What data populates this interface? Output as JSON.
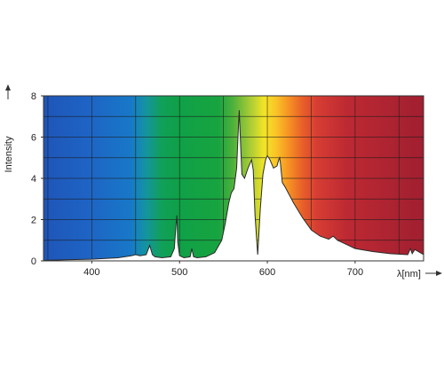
{
  "chart_data": {
    "type": "area",
    "title": "",
    "xlabel": "λ[nm]",
    "ylabel": "Intensity",
    "xlim": [
      345,
      778
    ],
    "ylim": [
      0,
      8
    ],
    "x_ticks": [
      "400",
      "500",
      "600",
      "700"
    ],
    "y_ticks": [
      "0",
      "2",
      "4",
      "6",
      "8"
    ],
    "grid": true,
    "background": "visible spectrum gradient (blue to red)",
    "fill_color": "#ffffff",
    "series": [
      {
        "x": [
          345,
          370,
          400,
          430,
          445,
          450,
          455,
          462,
          466,
          469,
          472,
          480,
          490,
          494,
          496,
          497,
          498,
          500,
          505,
          512,
          514,
          516,
          520,
          530,
          540,
          548,
          552,
          556,
          559,
          562,
          565,
          567,
          568,
          569,
          571,
          574,
          578,
          582,
          584,
          586,
          589,
          592,
          595,
          598,
          600,
          603,
          607,
          611,
          613,
          614,
          615,
          617,
          620,
          630,
          640,
          650,
          660,
          670,
          675,
          680,
          690,
          700,
          720,
          740,
          760,
          763,
          765,
          768,
          778
        ],
        "y": [
          0.02,
          0.05,
          0.08,
          0.15,
          0.25,
          0.3,
          0.25,
          0.3,
          0.75,
          0.3,
          0.2,
          0.15,
          0.2,
          0.6,
          1.8,
          2.2,
          0.9,
          0.25,
          0.15,
          0.2,
          0.6,
          0.2,
          0.15,
          0.2,
          0.4,
          1.0,
          1.8,
          2.8,
          3.3,
          3.5,
          4.5,
          6.4,
          7.3,
          6.2,
          4.2,
          4.0,
          4.5,
          4.9,
          4.4,
          2.2,
          0.3,
          2.5,
          4.2,
          4.9,
          5.1,
          4.9,
          4.5,
          4.6,
          4.9,
          5.0,
          4.7,
          3.8,
          3.6,
          2.8,
          2.1,
          1.5,
          1.2,
          1.05,
          1.2,
          1.0,
          0.8,
          0.6,
          0.45,
          0.35,
          0.3,
          0.6,
          0.35,
          0.55,
          0.3
        ]
      }
    ]
  }
}
